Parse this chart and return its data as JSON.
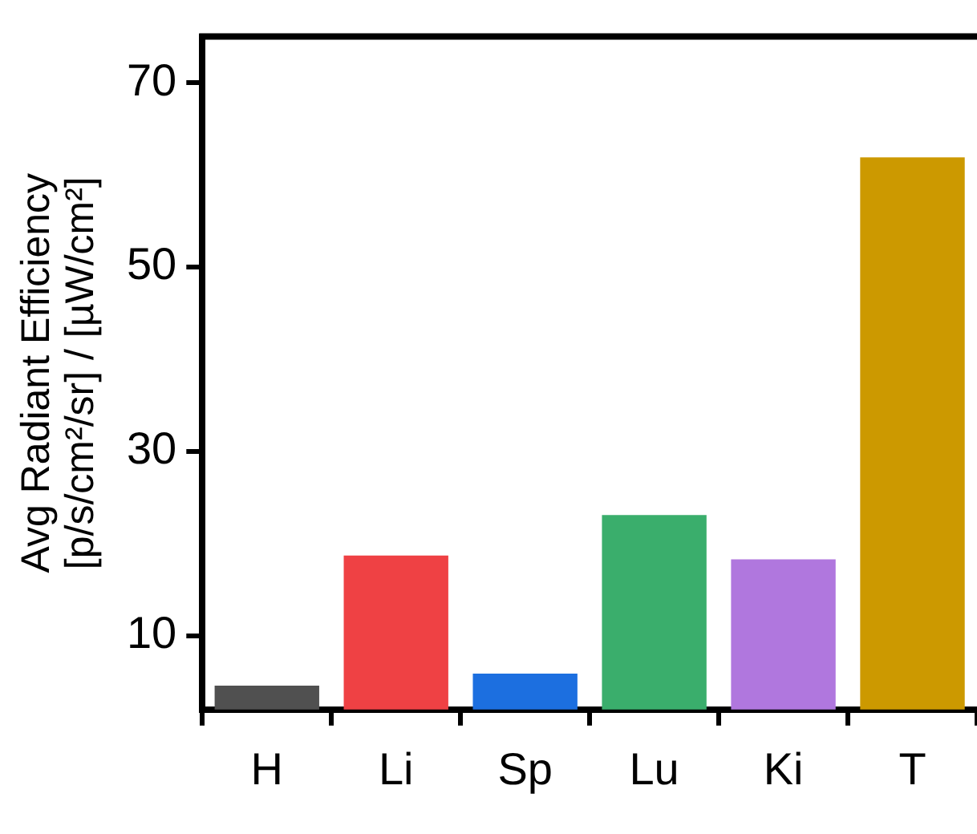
{
  "chart_data": {
    "type": "bar",
    "ylabel": "Avg Radiant Efficiency\n[p/s/cm²/sr] / [µW/cm²]",
    "categories": [
      "H",
      "Li",
      "Sp",
      "Lu",
      "Ki",
      "T"
    ],
    "values": [
      4.6,
      18.7,
      5.9,
      23.1,
      18.3,
      61.9
    ],
    "colors": [
      "#505050",
      "#ef4144",
      "#1c6fe0",
      "#3aae6c",
      "#b077de",
      "#cc9900"
    ],
    "ylim": [
      2,
      75
    ],
    "yticks": [
      10,
      30,
      50,
      70
    ],
    "grid": false,
    "legend": false
  }
}
